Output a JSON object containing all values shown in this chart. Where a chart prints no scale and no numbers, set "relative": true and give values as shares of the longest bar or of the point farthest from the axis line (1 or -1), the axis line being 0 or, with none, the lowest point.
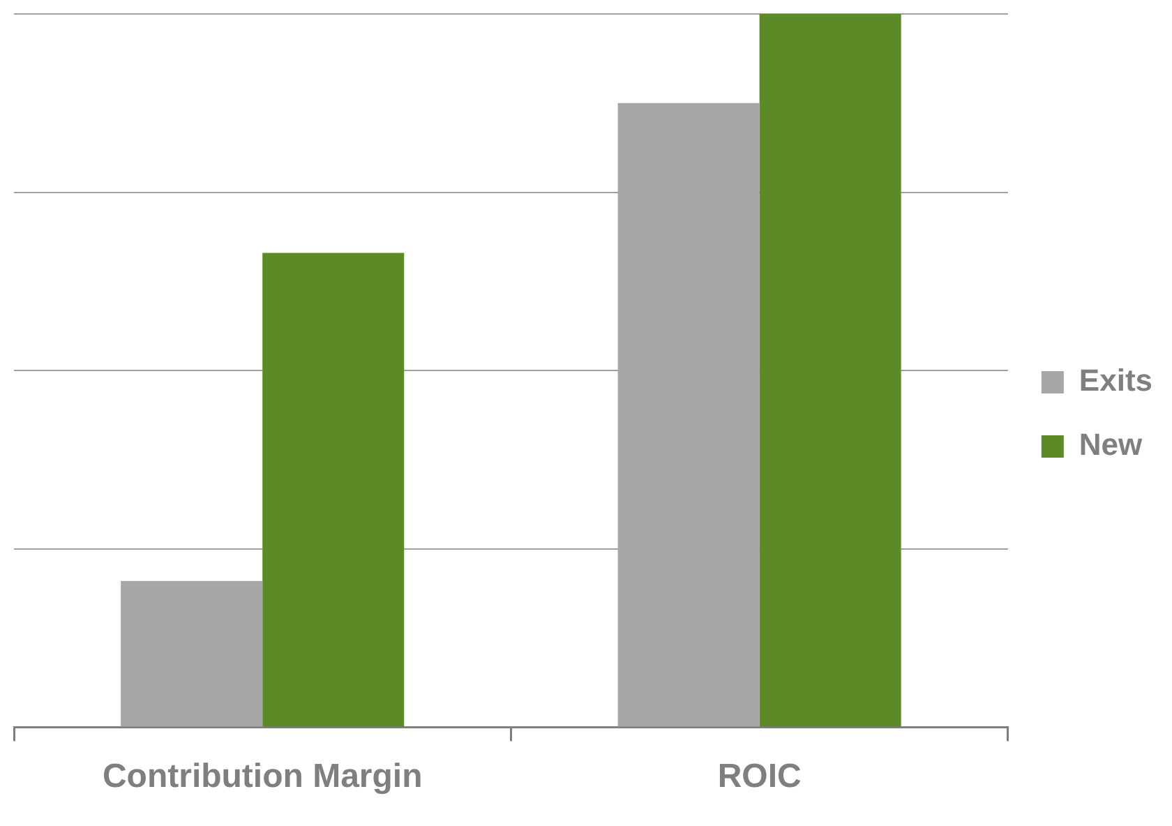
{
  "chart_data": {
    "type": "bar",
    "relative": true,
    "categories": [
      "Contribution Margin",
      "ROIC"
    ],
    "series": [
      {
        "name": "Exits",
        "color": "#a6a6a6",
        "values": [
          0.205,
          0.875
        ]
      },
      {
        "name": "New",
        "color": "#5b8a27",
        "values": [
          0.665,
          1
        ]
      }
    ],
    "grid": "y",
    "legend": "right"
  }
}
